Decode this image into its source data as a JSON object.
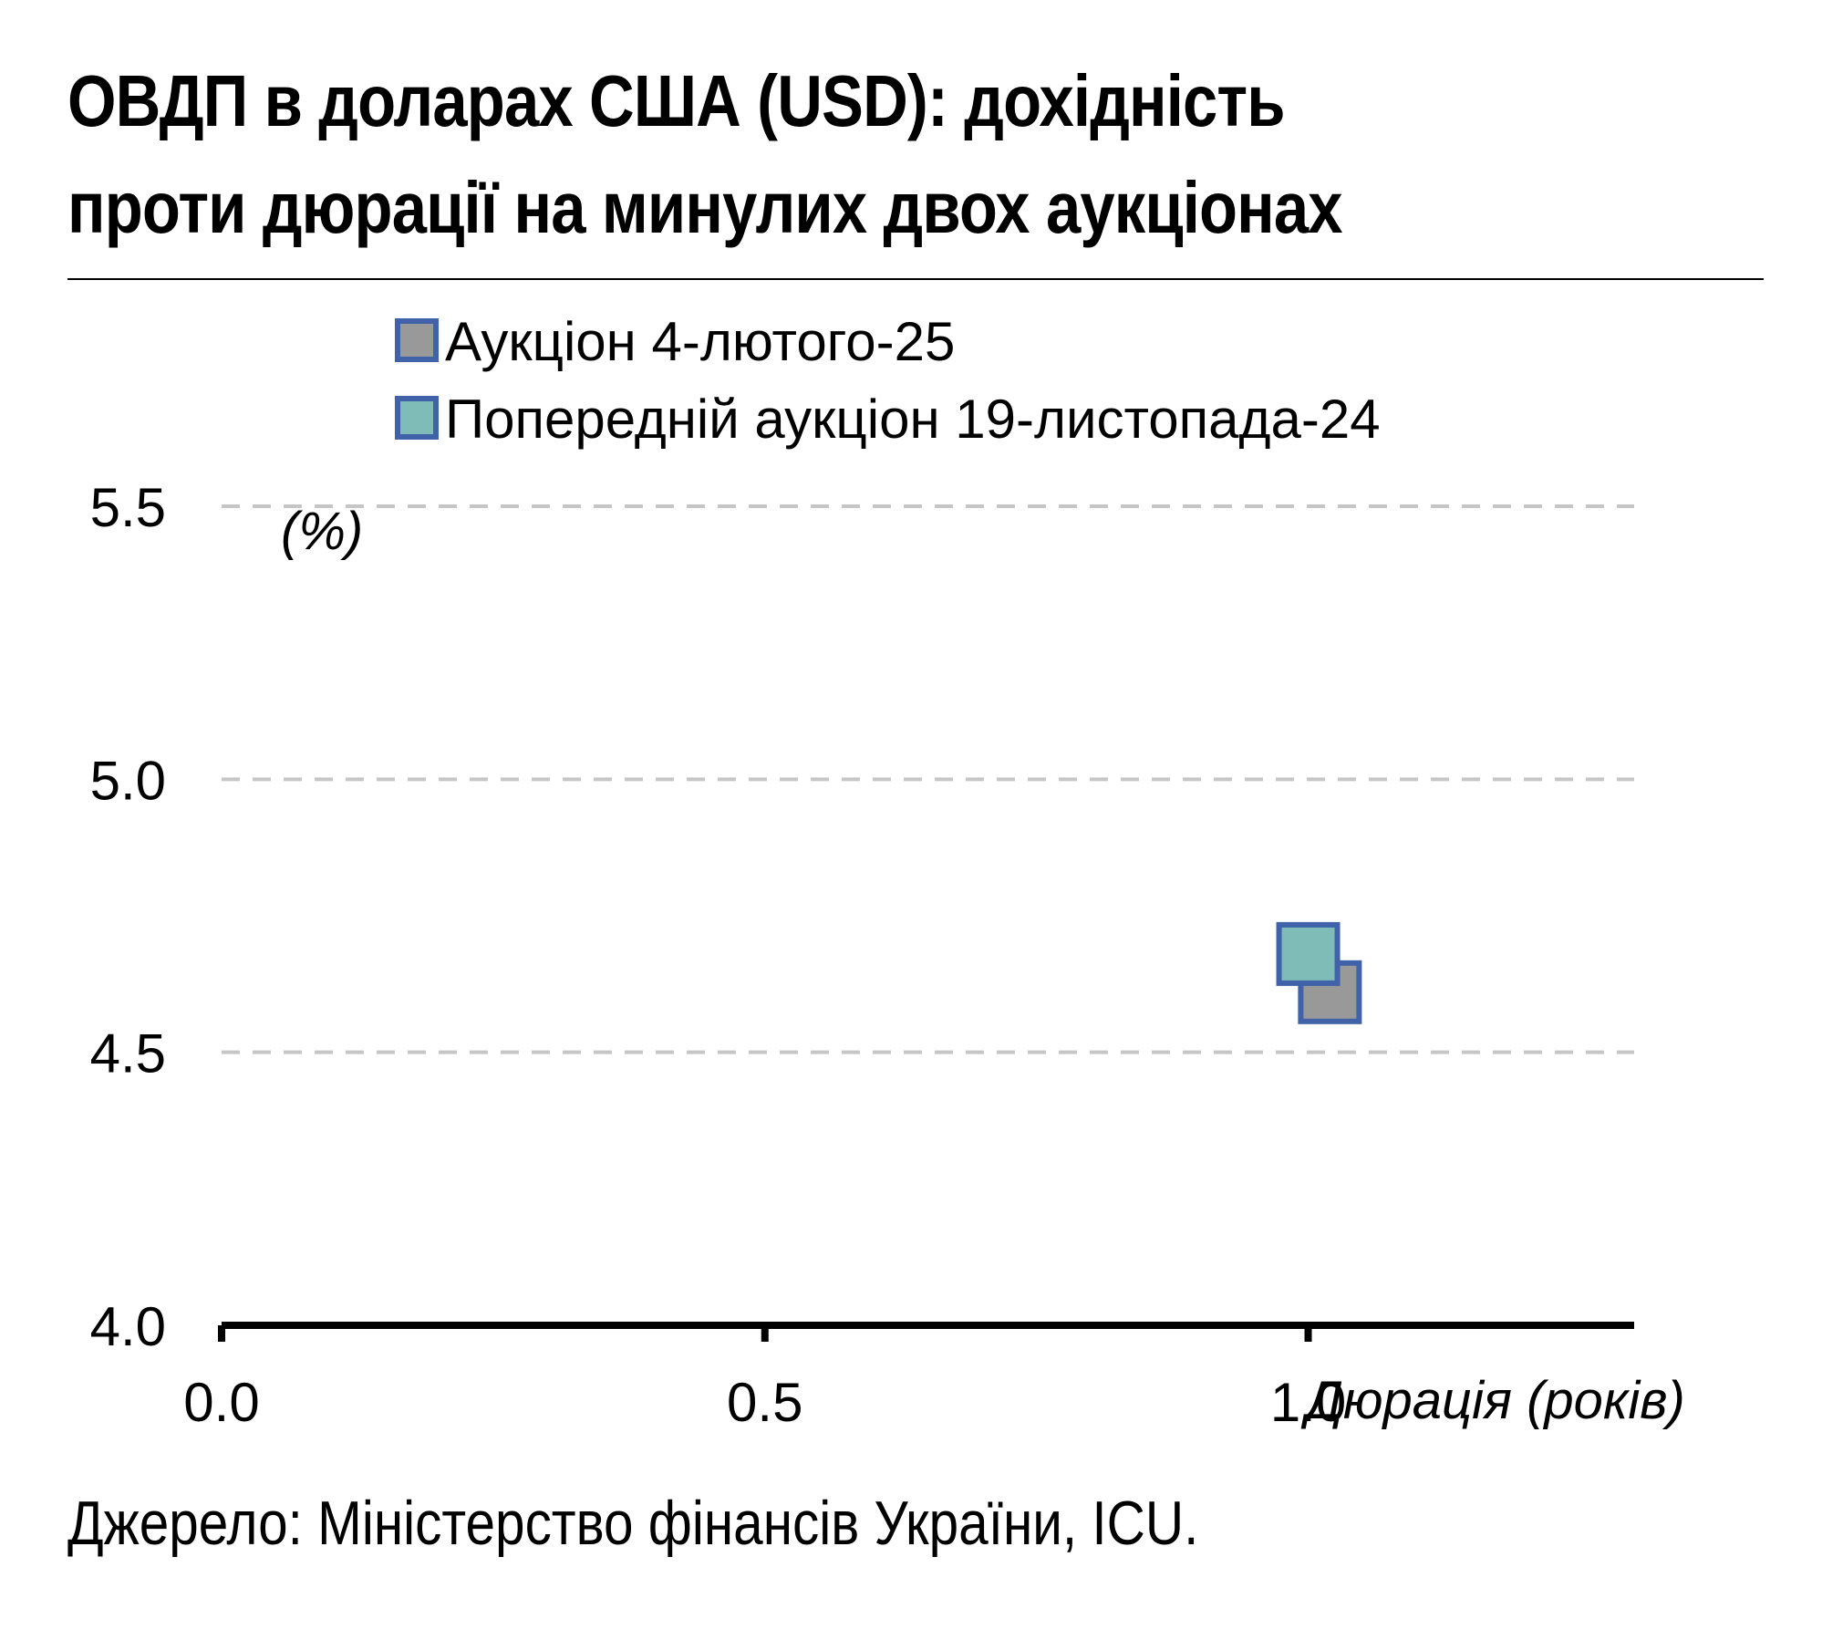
{
  "title_line1": "ОВДП в доларах США (USD): дохідність",
  "title_line2": "проти дюрації на минулих двох аукціонах",
  "source": "Джерело: Міністерство фінансів України, ICU.",
  "chart_data": {
    "type": "scatter",
    "xlabel": "Дюрація (років)",
    "ylabel": "(%)",
    "xlim": [
      0.0,
      1.3
    ],
    "ylim": [
      4.0,
      5.5
    ],
    "x_ticks": [
      "0.0",
      "0.5",
      "1.0"
    ],
    "y_ticks": [
      "4.0",
      "4.5",
      "5.0",
      "5.5"
    ],
    "grid": true,
    "legend_position": "top",
    "series": [
      {
        "name": "Аукціон 4-лютого-25",
        "color": "#999999",
        "edge": "#3f62a8",
        "points": [
          {
            "x": 1.02,
            "y": 4.61
          }
        ]
      },
      {
        "name": "Попередній аукціон 19-листопада-24",
        "color": "#7fbcb7",
        "edge": "#3f62a8",
        "points": [
          {
            "x": 1.0,
            "y": 4.68
          }
        ]
      }
    ]
  }
}
